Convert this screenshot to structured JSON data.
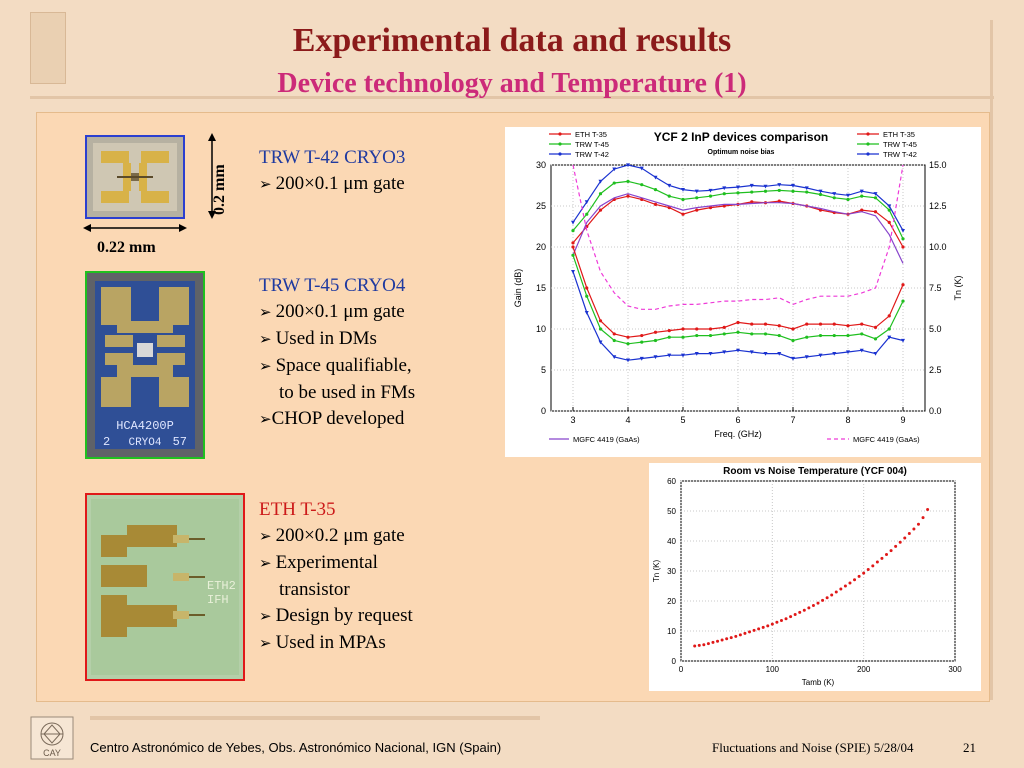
{
  "slide": {
    "title": "Experimental data and results",
    "subtitle": "Device technology and Temperature (1)"
  },
  "devices": [
    {
      "name": "TRW T-42 CRYO3",
      "bullets": [
        "200×0.1 μm gate"
      ],
      "dim_height": "0.2 mm",
      "dim_width": "0.22 mm",
      "frame_color": "#2b3fd0"
    },
    {
      "name": "TRW T-45 CRYO4",
      "bullets": [
        "200×0.1 μm gate",
        "Used in DMs",
        "Space qualifiable,",
        "to be used in FMs",
        "CHOP developed"
      ],
      "chip_text_1": "HCA4200P",
      "chip_text_2": "2",
      "chip_text_3": "CRYO4",
      "chip_text_4": "57",
      "frame_color": "#1fc01f"
    },
    {
      "name": "ETH T-35",
      "bullets": [
        "200×0.2 μm gate",
        "Experimental",
        "transistor",
        "Design by request",
        "Used in MPAs"
      ],
      "chip_text_1": "ETH2",
      "chip_text_2": "IFH",
      "frame_color": "#e01818"
    }
  ],
  "chart_data": [
    {
      "type": "line",
      "title": "YCF 2 InP devices comparison",
      "subtitle": "Optimum noise bias",
      "xlabel": "Freq. (GHz)",
      "ylabel": "Gain (dB)",
      "y2label": "Tn (K)",
      "xlim": [
        2.6,
        9.4
      ],
      "ylim": [
        0,
        30
      ],
      "y2lim": [
        0,
        15
      ],
      "xticks": [
        3,
        4,
        5,
        6,
        7,
        8,
        9
      ],
      "yticks": [
        0,
        5,
        10,
        15,
        20,
        25,
        30
      ],
      "y2ticks": [
        "0.0",
        "2.5",
        "5.0",
        "7.5",
        "10.0",
        "12.5",
        "15.0"
      ],
      "legend_left": [
        "ETH T-35",
        "TRW T-45",
        "TRW T-42"
      ],
      "legend_right": [
        "ETH T-35",
        "TRW T-45",
        "TRW T-42"
      ],
      "legend_bottom_left": "MGFC 4419 (GaAs)",
      "legend_bottom_right": "MGFC 4419 (GaAs)",
      "x": [
        3,
        3.25,
        3.5,
        3.75,
        4,
        4.25,
        4.5,
        4.75,
        5,
        5.25,
        5.5,
        5.75,
        6,
        6.25,
        6.5,
        6.75,
        7,
        7.25,
        7.5,
        7.75,
        8,
        8.25,
        8.5,
        8.75,
        9
      ],
      "series": [
        {
          "name": "ETH T-35",
          "axis": "left",
          "color": "#e01818",
          "marker": "circle",
          "values": [
            20.5,
            22.5,
            24.5,
            25.8,
            26.2,
            25.8,
            25.2,
            24.8,
            24.0,
            24.5,
            24.8,
            25.0,
            25.2,
            25.5,
            25.4,
            25.6,
            25.3,
            25.0,
            24.5,
            24.2,
            24.0,
            24.5,
            24.3,
            23.0,
            20.0
          ]
        },
        {
          "name": "TRW T-45",
          "axis": "left",
          "color": "#1fbf1f",
          "marker": "circle",
          "values": [
            22.0,
            24.0,
            26.5,
            27.8,
            28.0,
            27.6,
            27.0,
            26.2,
            25.8,
            26.0,
            26.2,
            26.5,
            26.6,
            26.7,
            26.8,
            26.9,
            26.8,
            26.7,
            26.4,
            26.0,
            25.8,
            26.2,
            26.0,
            24.5,
            21.0
          ]
        },
        {
          "name": "TRW T-42",
          "axis": "left",
          "color": "#1a32d0",
          "marker": "triangle",
          "values": [
            23.0,
            25.5,
            28.0,
            29.5,
            30.0,
            29.6,
            28.5,
            27.5,
            27.0,
            26.8,
            26.9,
            27.2,
            27.3,
            27.5,
            27.4,
            27.6,
            27.5,
            27.2,
            26.8,
            26.5,
            26.3,
            26.8,
            26.5,
            25.0,
            22.0
          ]
        },
        {
          "name": "MGFC 4419 (GaAs)",
          "axis": "left",
          "color": "#8844cc",
          "marker": "none",
          "values": [
            19.0,
            23.0,
            25.0,
            26.0,
            26.5,
            26.0,
            25.5,
            25.0,
            24.5,
            24.8,
            25.0,
            25.2,
            25.2,
            25.3,
            25.4,
            25.4,
            25.3,
            25.0,
            24.7,
            24.3,
            24.0,
            24.3,
            23.8,
            21.5,
            18.0
          ]
        },
        {
          "name": "ETH T-35",
          "axis": "right",
          "color": "#e01818",
          "marker": "circle",
          "values": [
            10.0,
            7.5,
            5.5,
            4.7,
            4.5,
            4.6,
            4.8,
            4.9,
            5.0,
            5.0,
            5.0,
            5.1,
            5.4,
            5.3,
            5.3,
            5.2,
            5.0,
            5.3,
            5.3,
            5.3,
            5.2,
            5.3,
            5.1,
            5.8,
            7.7
          ]
        },
        {
          "name": "TRW T-45",
          "axis": "right",
          "color": "#1fbf1f",
          "marker": "circle",
          "values": [
            9.5,
            7.0,
            5.0,
            4.3,
            4.1,
            4.2,
            4.3,
            4.5,
            4.5,
            4.6,
            4.6,
            4.7,
            4.8,
            4.7,
            4.7,
            4.6,
            4.3,
            4.5,
            4.6,
            4.6,
            4.6,
            4.7,
            4.4,
            5.0,
            6.7
          ]
        },
        {
          "name": "TRW T-42",
          "axis": "right",
          "color": "#1a32d0",
          "marker": "triangle",
          "values": [
            8.5,
            6.0,
            4.2,
            3.3,
            3.1,
            3.2,
            3.3,
            3.4,
            3.4,
            3.5,
            3.5,
            3.6,
            3.7,
            3.6,
            3.5,
            3.5,
            3.2,
            3.3,
            3.4,
            3.5,
            3.6,
            3.7,
            3.5,
            4.5,
            4.3
          ]
        },
        {
          "name": "MGFC 4419 (GaAs)",
          "axis": "right",
          "color": "#ee3ad8",
          "marker": "none",
          "dashed": true,
          "values": [
            15.0,
            11.0,
            8.5,
            7.2,
            6.4,
            6.2,
            6.2,
            6.4,
            6.5,
            6.5,
            6.6,
            6.7,
            6.7,
            6.8,
            6.8,
            6.9,
            6.5,
            6.8,
            7.0,
            7.0,
            7.0,
            7.2,
            7.5,
            10.0,
            15.0
          ]
        }
      ]
    },
    {
      "type": "scatter",
      "title": "Room vs Noise Temperature (YCF 004)",
      "xlabel": "Tamb (K)",
      "ylabel": "Tn (K)",
      "xlim": [
        0,
        300
      ],
      "ylim": [
        0,
        60
      ],
      "xticks": [
        0,
        100,
        200,
        300
      ],
      "yticks": [
        0,
        10,
        20,
        30,
        40,
        50,
        60
      ],
      "x": [
        15,
        20,
        25,
        30,
        35,
        40,
        45,
        50,
        55,
        60,
        65,
        70,
        75,
        80,
        85,
        90,
        95,
        100,
        105,
        110,
        115,
        120,
        125,
        130,
        135,
        140,
        145,
        150,
        155,
        160,
        165,
        170,
        175,
        180,
        185,
        190,
        195,
        200,
        205,
        210,
        215,
        220,
        225,
        230,
        235,
        240,
        245,
        250,
        255,
        260,
        265,
        270
      ],
      "series": [
        {
          "name": "",
          "color": "#e01818",
          "values": [
            5.0,
            5.2,
            5.4,
            5.8,
            6.2,
            6.6,
            7.0,
            7.4,
            7.8,
            8.2,
            8.7,
            9.2,
            9.7,
            10.2,
            10.7,
            11.2,
            11.7,
            12.3,
            12.9,
            13.5,
            14.1,
            14.8,
            15.5,
            16.2,
            16.9,
            17.7,
            18.5,
            19.3,
            20.2,
            21.1,
            22.0,
            23.0,
            24.0,
            25.0,
            26.0,
            27.1,
            28.2,
            29.3,
            30.5,
            31.7,
            33.0,
            34.2,
            35.5,
            36.8,
            38.2,
            39.6,
            41.0,
            42.5,
            44.0,
            45.6,
            47.8,
            50.5
          ]
        }
      ]
    }
  ],
  "footer": {
    "left": "Centro Astronómico de Yebes, Obs. Astronómico Nacional, IGN (Spain)",
    "right": "Fluctuations and Noise (SPIE)  5/28/04",
    "page": "21",
    "logo_text": "CAY"
  }
}
